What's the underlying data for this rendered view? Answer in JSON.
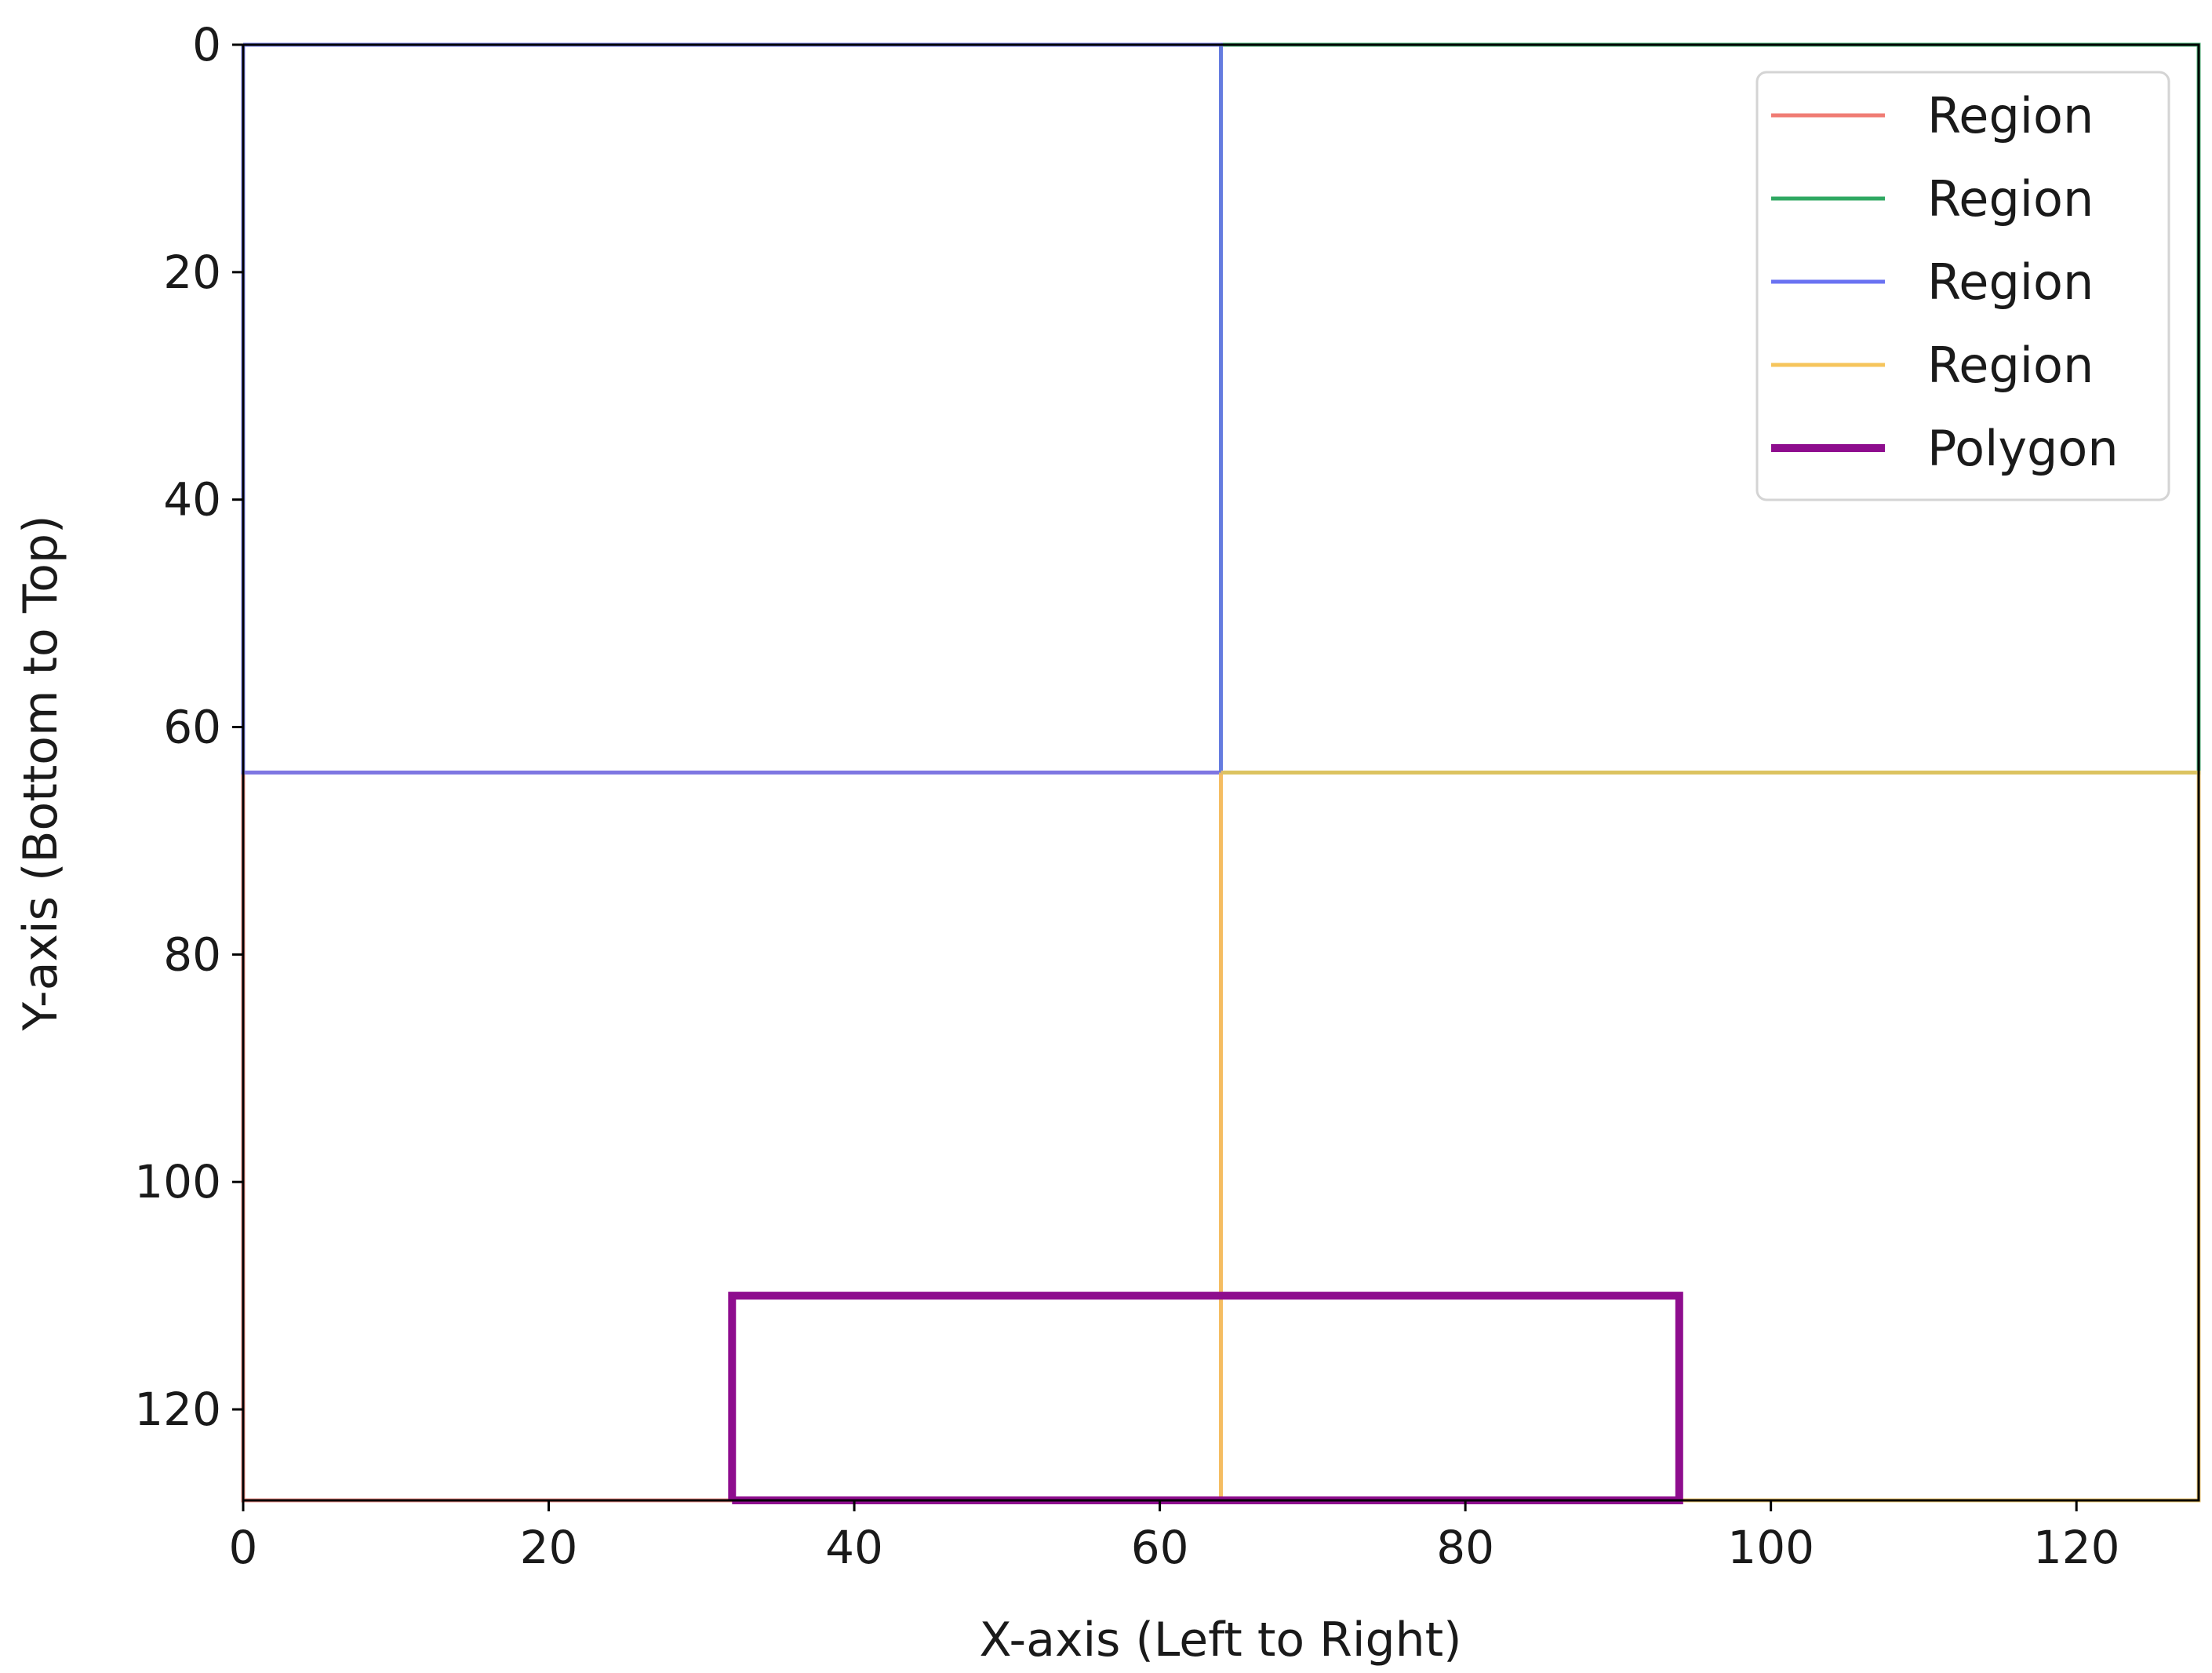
{
  "chart_data": {
    "type": "line",
    "xlabel": "X-axis (Left to Right)",
    "ylabel": "Y-axis (Bottom to Top)",
    "xlim": [
      0,
      128
    ],
    "ylim": [
      128,
      0
    ],
    "y_inverted": true,
    "xticks": [
      0,
      20,
      40,
      60,
      80,
      100,
      120
    ],
    "yticks": [
      0,
      20,
      40,
      60,
      80,
      100,
      120
    ],
    "grid": false,
    "legend_position": "top-right",
    "series": [
      {
        "name": "Region",
        "color": "#f07c74",
        "width": "thin",
        "x": [
          0,
          64,
          64,
          0,
          0
        ],
        "y": [
          64,
          64,
          128,
          128,
          64
        ]
      },
      {
        "name": "Region",
        "color": "#2fa862",
        "width": "thin",
        "x": [
          64,
          128,
          128,
          64,
          64
        ],
        "y": [
          0,
          0,
          64,
          64,
          0
        ]
      },
      {
        "name": "Region",
        "color": "#6a72f2",
        "width": "thin",
        "x": [
          0,
          64,
          64,
          0,
          0
        ],
        "y": [
          0,
          0,
          64,
          64,
          0
        ]
      },
      {
        "name": "Region",
        "color": "#f6c55c",
        "width": "thin",
        "x": [
          64,
          128,
          128,
          64,
          64
        ],
        "y": [
          64,
          64,
          128,
          128,
          64
        ]
      },
      {
        "name": "Polygon",
        "color": "#8e0d8e",
        "width": "thick",
        "x": [
          32,
          94,
          94,
          32,
          32
        ],
        "y": [
          128,
          128,
          110,
          110,
          128
        ]
      }
    ]
  }
}
